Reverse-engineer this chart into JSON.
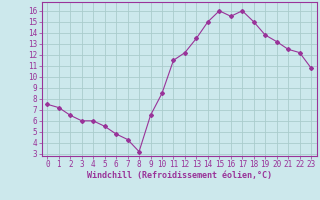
{
  "x": [
    0,
    1,
    2,
    3,
    4,
    5,
    6,
    7,
    8,
    9,
    10,
    11,
    12,
    13,
    14,
    15,
    16,
    17,
    18,
    19,
    20,
    21,
    22,
    23
  ],
  "y": [
    7.5,
    7.2,
    6.5,
    6.0,
    6.0,
    5.5,
    4.8,
    4.3,
    3.2,
    6.5,
    8.5,
    11.5,
    12.2,
    13.5,
    15.0,
    16.0,
    15.5,
    16.0,
    15.0,
    13.8,
    13.2,
    12.5,
    12.2,
    10.8
  ],
  "line_color": "#993399",
  "marker": "D",
  "marker_size": 2,
  "background_color": "#cce8ec",
  "grid_color": "#aacccc",
  "xlabel": "Windchill (Refroidissement éolien,°C)",
  "ylabel": "",
  "title": "",
  "xlim": [
    -0.5,
    23.5
  ],
  "ylim": [
    2.8,
    16.8
  ],
  "yticks": [
    3,
    4,
    5,
    6,
    7,
    8,
    9,
    10,
    11,
    12,
    13,
    14,
    15,
    16
  ],
  "xticks": [
    0,
    1,
    2,
    3,
    4,
    5,
    6,
    7,
    8,
    9,
    10,
    11,
    12,
    13,
    14,
    15,
    16,
    17,
    18,
    19,
    20,
    21,
    22,
    23
  ],
  "tick_color": "#993399",
  "tick_label_color": "#993399",
  "spine_color": "#993399",
  "xlabel_fontsize": 6,
  "tick_fontsize": 5.5
}
